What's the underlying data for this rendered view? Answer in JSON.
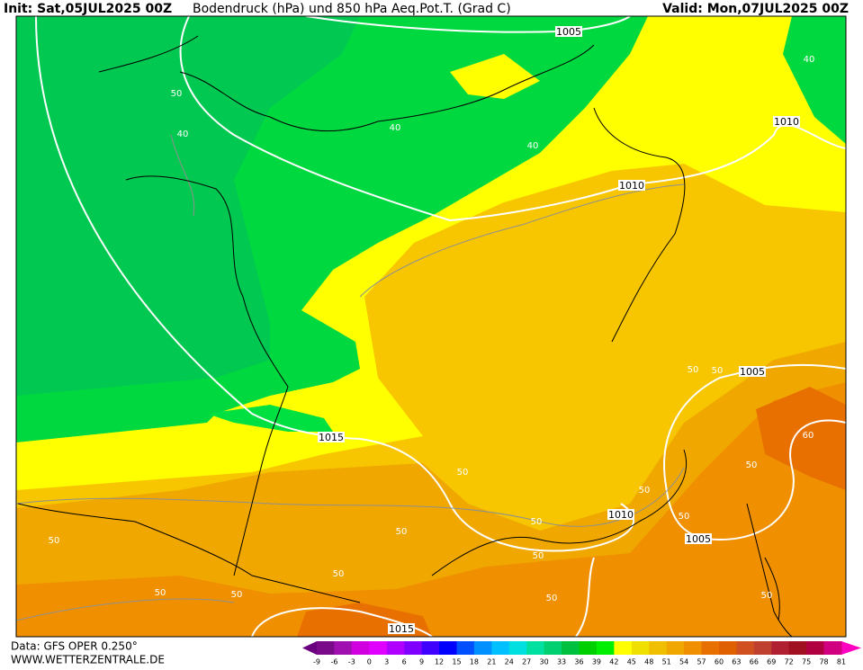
{
  "header": {
    "init": "Init: Sat,05JUL2025 00Z",
    "title": "Bodendruck (hPa) und 850 hPa Aeq.Pot.T. (Grad C)",
    "valid": "Valid: Mon,07JUL2025 00Z"
  },
  "footer": {
    "data_source": "Data: GFS OPER 0.250°",
    "website": "WWW.WETTERZENTRALE.DE"
  },
  "colorbar": {
    "labels": [
      -9,
      -6,
      -3,
      0,
      3,
      6,
      9,
      12,
      15,
      18,
      21,
      24,
      27,
      30,
      33,
      36,
      39,
      42,
      45,
      48,
      51,
      54,
      57,
      60,
      63,
      66,
      69,
      72,
      75,
      78,
      81
    ],
    "colors": [
      "#7a0a8a",
      "#a010b0",
      "#d000e0",
      "#e000ff",
      "#b000ff",
      "#8000ff",
      "#4000ff",
      "#0000ff",
      "#0050ff",
      "#0090ff",
      "#00c0ff",
      "#00e0e0",
      "#00e0a0",
      "#00d070",
      "#00c040",
      "#00d000",
      "#00ee00",
      "#ffff00",
      "#f0e000",
      "#f0c000",
      "#f0a800",
      "#f09000",
      "#e87000",
      "#e06000",
      "#d05020",
      "#c04030",
      "#b02030",
      "#a01020",
      "#b00040",
      "#d00080"
    ],
    "under_color": "#6a0080",
    "over_color": "#ff00c0"
  },
  "contour_labels": [
    "1005",
    "1010",
    "1010",
    "1005",
    "1015",
    "1010",
    "1005",
    "1015",
    "50",
    "40",
    "40",
    "40",
    "40",
    "50",
    "50",
    "60",
    "50",
    "50",
    "50",
    "50",
    "50",
    "50",
    "50",
    "50",
    "50",
    "50",
    "50",
    "50",
    "50"
  ]
}
